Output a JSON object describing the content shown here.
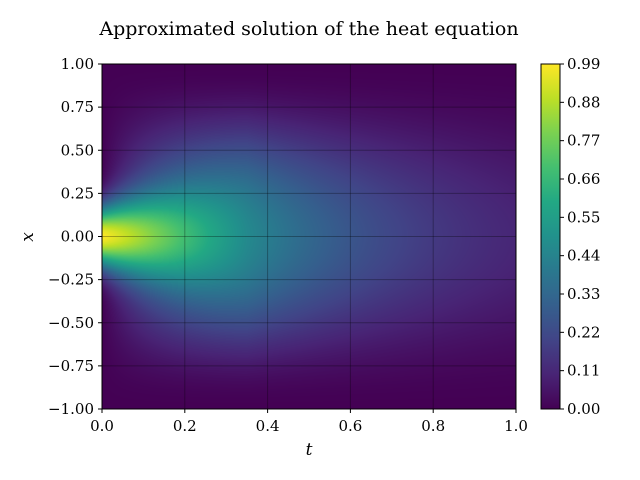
{
  "chart_data": {
    "type": "heatmap",
    "title": "Approximated solution of the heat equation",
    "xlabel": "t",
    "ylabel": "x",
    "xlim": [
      0.0,
      1.0
    ],
    "ylim": [
      -1.0,
      1.0
    ],
    "xticks": [
      "0.0",
      "0.2",
      "0.4",
      "0.6",
      "0.8",
      "1.0"
    ],
    "yticks": [
      "1.00",
      "0.75",
      "0.50",
      "0.25",
      "0.00",
      "−0.25",
      "−0.50",
      "−0.75",
      "−1.00"
    ],
    "grid": true,
    "colormap": "viridis",
    "colorbar": {
      "min": 0.0,
      "max": 0.99,
      "ticks": [
        "0.99",
        "0.88",
        "0.77",
        "0.66",
        "0.55",
        "0.44",
        "0.33",
        "0.22",
        "0.11",
        "0.00"
      ]
    },
    "field": {
      "peak_value": 0.99,
      "peak_location": {
        "t": 0.0,
        "x": 0.0
      },
      "value_at_t_0_5_x_0": 0.33,
      "value_at_t_1_x_0": 0.15,
      "value_at_x_pm1": 0.0
    }
  }
}
